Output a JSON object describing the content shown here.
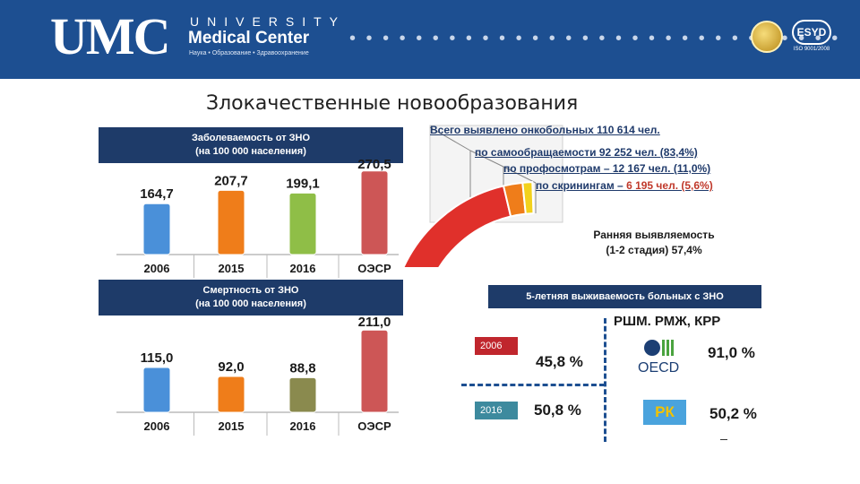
{
  "header": {
    "logo_umc": "UMC",
    "logo_university": "UNIVERSITY",
    "logo_medical_center": "Medical Center",
    "logo_tagline": "Наука • Образование • Здравоохранение",
    "dots": "• • • • • • • • • • • • • • • • • • • • • • • • • • • • • •",
    "esyd_label": "ESYD",
    "esyd_sub": "ISO 9001/2008"
  },
  "title": "Злокачественные новообразования",
  "chart_data": [
    {
      "type": "bar",
      "title": "Заболеваемость от ЗНО",
      "subtitle": "(на 100 000 населения)",
      "categories": [
        "2006",
        "2015",
        "2016",
        "ОЭСР"
      ],
      "values": [
        164.7,
        207.7,
        199.1,
        270.5
      ],
      "value_labels": [
        "164,7",
        "207,7",
        "199,1",
        "270,5"
      ],
      "colors": [
        "#4a90d9",
        "#ef7d1a",
        "#8fbe47",
        "#cd5656"
      ],
      "ylim": [
        0,
        290
      ]
    },
    {
      "type": "bar",
      "title": "Смертность от ЗНО",
      "subtitle": "(на 100 000 населения)",
      "categories": [
        "2006",
        "2015",
        "2016",
        "ОЭСР"
      ],
      "values": [
        115.0,
        92.0,
        88.8,
        211.0
      ],
      "value_labels": [
        "115,0",
        "92,0",
        "88,8",
        "211,0"
      ],
      "colors": [
        "#4a90d9",
        "#ef7d1a",
        "#8a8a4e",
        "#cd5656"
      ],
      "ylim": [
        0,
        230
      ]
    },
    {
      "type": "pie",
      "title": "Всего выявлено онкобольных 110 614 чел.",
      "segments": [
        {
          "name": "по самообращаемости 92 252 чел. (83,4%)",
          "value": 83.4,
          "color": "#e0302b"
        },
        {
          "name": "по профосмотрам – 12 167 чел. (11,0%)",
          "value": 11.0,
          "color": "#ef7d1a"
        },
        {
          "name": "по скринингам – 6 195 чел. (5,6%)",
          "value": 5.6,
          "color": "#f2d11c"
        }
      ]
    }
  ],
  "detection": {
    "total": "Всего выявлено онкобольных 110 614 чел.",
    "self": "по самообращаемости 92 252 чел. (83,4%)",
    "checkups": "по профосмотрам – 12 167 чел. (11,0%)",
    "screening_prefix": "по скринингам – ",
    "screening_value": "6 195 чел. (5,6%)",
    "early_line1": "Ранняя выявляемость",
    "early_line2": "(1-2 стадия) 57,4%"
  },
  "survival": {
    "title": "5-летняя выживаемость больных с ЗНО",
    "year_2006": "2006",
    "year_2016": "2016",
    "val_2006": "45,8 %",
    "val_2016": "50,8 %",
    "cancers": "РШМ. РМЖ, КРР",
    "oecd_label": "OECD",
    "oecd_value": "91,0 %",
    "rk_label": "РК",
    "rk_value": "50,2 %"
  },
  "colors": {
    "header_bg": "#1d4f91",
    "panel_bg": "#1e3b69",
    "badge_2006": "#c0262d",
    "badge_2016": "#3d8a9e"
  }
}
